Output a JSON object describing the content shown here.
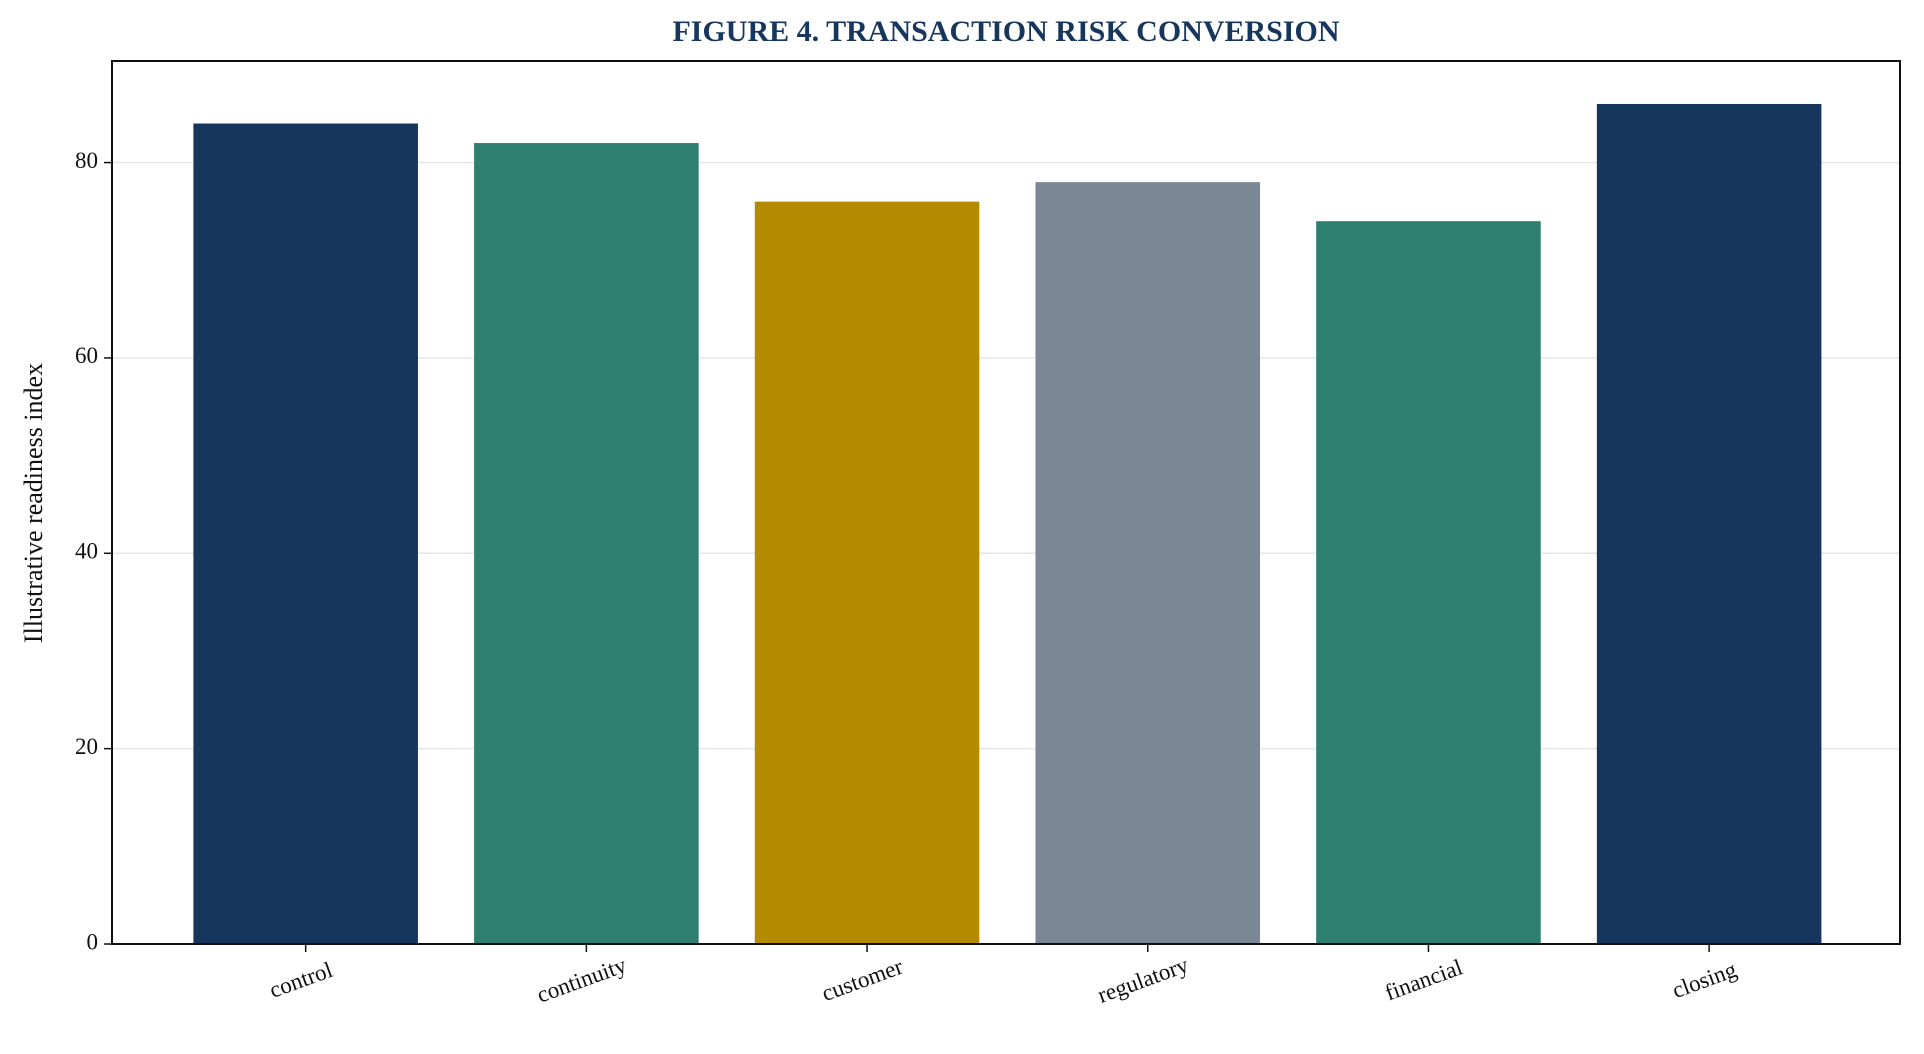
{
  "chart_data": {
    "type": "bar",
    "title": "FIGURE 4. TRANSACTION RISK CONVERSION",
    "ylabel": "Illustrative readiness index",
    "categories": [
      "control",
      "continuity",
      "customer",
      "regulatory",
      "financial",
      "closing"
    ],
    "values": [
      84,
      82,
      76,
      78,
      74,
      86
    ],
    "colors": [
      "#17365d",
      "#2e7f6f",
      "#b38a00",
      "#7a8896",
      "#2e7f6f",
      "#17365d"
    ],
    "ylim": [
      0,
      90.4
    ],
    "yticks": [
      0,
      20,
      40,
      60,
      80
    ],
    "grid": true
  }
}
